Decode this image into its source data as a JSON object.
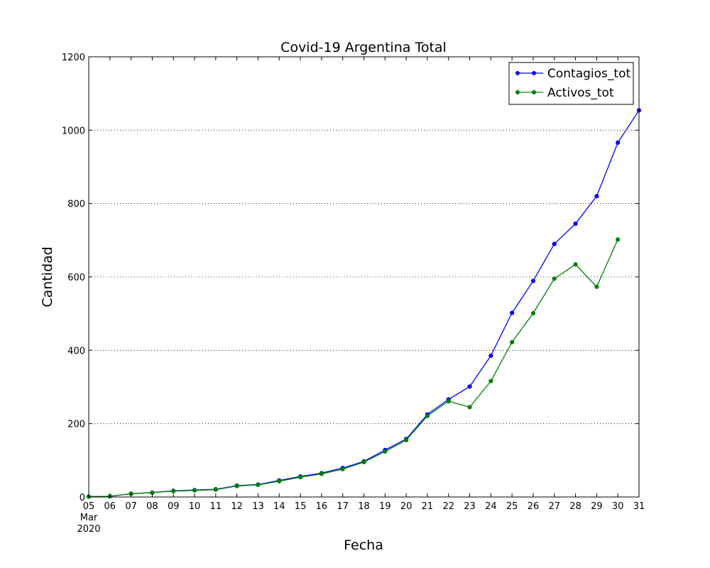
{
  "chart_data": {
    "type": "line",
    "title": "Covid-19 Argentina Total",
    "xlabel": "Fecha",
    "ylabel": "Cantidad",
    "x": [
      "05",
      "06",
      "07",
      "08",
      "09",
      "10",
      "11",
      "12",
      "13",
      "14",
      "15",
      "16",
      "17",
      "18",
      "19",
      "20",
      "21",
      "22",
      "23",
      "24",
      "25",
      "26",
      "27",
      "28",
      "29",
      "30",
      "31"
    ],
    "x_tick_month": "Mar",
    "x_tick_year": "2020",
    "ylim": [
      0,
      1200
    ],
    "yticks": [
      "0",
      "200",
      "400",
      "600",
      "800",
      "1000",
      "1200"
    ],
    "grid": "y dotted",
    "legend_position": "top-right",
    "series": [
      {
        "name": "Contagios_tot",
        "color": "#0000ff",
        "values": [
          1,
          2,
          9,
          12,
          17,
          19,
          21,
          31,
          34,
          45,
          56,
          65,
          79,
          97,
          128,
          158,
          225,
          266,
          301,
          385,
          502,
          589,
          690,
          745,
          820,
          966,
          1054
        ]
      },
      {
        "name": "Activos_tot",
        "color": "#008000",
        "values": [
          1,
          2,
          9,
          12,
          16,
          18,
          20,
          30,
          33,
          43,
          54,
          63,
          76,
          95,
          124,
          155,
          221,
          261,
          245,
          316,
          422,
          501,
          595,
          634,
          573,
          702,
          null
        ]
      }
    ]
  }
}
